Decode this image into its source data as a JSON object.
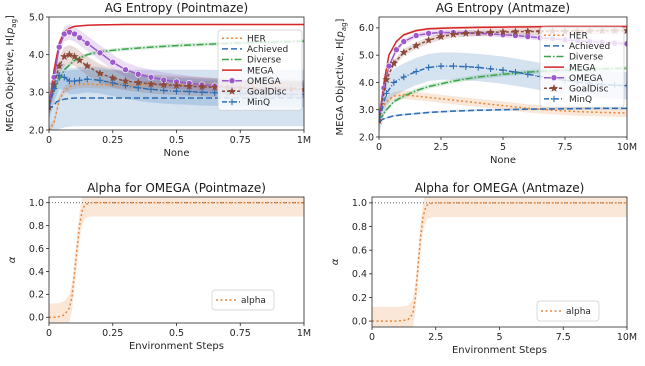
{
  "chart_data": [
    {
      "type": "line",
      "title": "AG Entropy (Pointmaze)",
      "xlabel": "None",
      "ylabel": "MEGA Objective, H[p_ag]",
      "xlim": [
        0,
        1
      ],
      "ylim": [
        2.0,
        5.0
      ],
      "xticks": [
        0,
        0.25,
        0.5,
        0.75,
        1.0
      ],
      "xtick_labels": [
        "0",
        "0.25",
        "0.5",
        "0.75",
        "1M"
      ],
      "yticks": [
        2.0,
        3.0,
        4.0,
        5.0
      ],
      "ytick_labels": [
        "2.0",
        "3.0",
        "4.0",
        "5.0"
      ],
      "legend_position": "right",
      "series": [
        {
          "name": "HER",
          "color": "#e8873a",
          "dash": "2,2.5",
          "marker": "",
          "x": [
            0,
            0.02,
            0.04,
            0.06,
            0.08,
            0.1,
            0.15,
            0.2,
            0.3,
            0.4,
            0.5,
            0.6,
            0.7,
            0.8,
            0.9,
            1.0
          ],
          "y": [
            2.0,
            2.2,
            2.8,
            3.05,
            3.15,
            3.2,
            3.22,
            3.2,
            3.2,
            3.2,
            3.2,
            3.2,
            3.2,
            3.2,
            3.2,
            3.2
          ],
          "band": 0.1
        },
        {
          "name": "Achieved",
          "color": "#2e6db4",
          "dash": "6,3",
          "marker": "",
          "x": [
            0,
            0.03,
            0.06,
            0.1,
            0.2,
            0.3,
            0.4,
            0.5,
            0.6,
            0.7,
            0.8,
            0.9,
            1.0
          ],
          "y": [
            2.5,
            2.75,
            2.82,
            2.85,
            2.85,
            2.85,
            2.85,
            2.85,
            2.85,
            2.85,
            2.85,
            2.85,
            2.85
          ],
          "band": 0.75
        },
        {
          "name": "Diverse",
          "color": "#3aa34a",
          "dash": "7,2,1.5,2",
          "marker": "",
          "x": [
            0,
            0.03,
            0.06,
            0.1,
            0.15,
            0.2,
            0.3,
            0.4,
            0.5,
            0.6,
            0.7,
            0.8,
            0.9,
            1.0
          ],
          "y": [
            2.7,
            3.2,
            3.6,
            3.85,
            4.0,
            4.08,
            4.15,
            4.2,
            4.24,
            4.27,
            4.3,
            4.32,
            4.34,
            4.36
          ],
          "band": 0.05
        },
        {
          "name": "MEGA",
          "color": "#d62728",
          "dash": "",
          "marker": "",
          "x": [
            0,
            0.02,
            0.04,
            0.06,
            0.08,
            0.1,
            0.15,
            0.2,
            0.3,
            0.4,
            0.5,
            0.6,
            0.7,
            0.8,
            0.9,
            1.0
          ],
          "y": [
            2.6,
            3.6,
            4.3,
            4.6,
            4.7,
            4.75,
            4.78,
            4.79,
            4.8,
            4.8,
            4.8,
            4.8,
            4.8,
            4.8,
            4.8,
            4.8
          ],
          "band": 0.02
        },
        {
          "name": "OMEGA",
          "color": "#9b59c9",
          "dash": "",
          "marker": "circle",
          "x": [
            0,
            0.02,
            0.04,
            0.06,
            0.08,
            0.1,
            0.12,
            0.15,
            0.2,
            0.25,
            0.3,
            0.35,
            0.4,
            0.45,
            0.5,
            0.55,
            0.6,
            0.65,
            0.7,
            0.75,
            0.8,
            0.85,
            0.9,
            0.95,
            1.0
          ],
          "y": [
            2.6,
            3.4,
            4.2,
            4.55,
            4.6,
            4.55,
            4.45,
            4.3,
            4.05,
            3.8,
            3.6,
            3.48,
            3.4,
            3.33,
            3.28,
            3.24,
            3.2,
            3.17,
            3.14,
            3.12,
            3.1,
            3.09,
            3.08,
            3.07,
            3.06
          ],
          "band": 0.2
        },
        {
          "name": "GoalDisc",
          "color": "#8c4a3a",
          "dash": "3,2",
          "marker": "star",
          "x": [
            0,
            0.02,
            0.04,
            0.06,
            0.08,
            0.1,
            0.12,
            0.15,
            0.2,
            0.25,
            0.3,
            0.35,
            0.4,
            0.45,
            0.5,
            0.55,
            0.6,
            0.65,
            0.7,
            0.75,
            0.8,
            0.85,
            0.9,
            0.95,
            1.0
          ],
          "y": [
            2.6,
            3.2,
            3.7,
            3.95,
            4.0,
            3.95,
            3.85,
            3.7,
            3.5,
            3.38,
            3.3,
            3.26,
            3.22,
            3.2,
            3.18,
            3.16,
            3.15,
            3.13,
            3.12,
            3.11,
            3.1,
            3.1,
            3.09,
            3.09,
            3.08
          ],
          "band": 0.25
        },
        {
          "name": "MinQ",
          "color": "#2e6db4",
          "dash": "5,2,1,2",
          "marker": "plus",
          "x": [
            0,
            0.02,
            0.04,
            0.06,
            0.08,
            0.1,
            0.12,
            0.15,
            0.2,
            0.25,
            0.3,
            0.35,
            0.4,
            0.45,
            0.5,
            0.55,
            0.6,
            0.65,
            0.7,
            0.75,
            0.8,
            0.85,
            0.9,
            0.95,
            1.0
          ],
          "y": [
            2.6,
            3.1,
            3.45,
            3.4,
            3.3,
            3.3,
            3.32,
            3.35,
            3.32,
            3.25,
            3.18,
            3.12,
            3.08,
            3.05,
            3.03,
            3.02,
            3.0,
            2.99,
            2.98,
            2.97,
            2.97,
            2.96,
            2.96,
            2.95,
            2.95
          ],
          "band": 0.35
        }
      ]
    },
    {
      "type": "line",
      "title": "AG Entropy (Antmaze)",
      "xlabel": "None",
      "ylabel": "MEGA Objective, H[p_ag]",
      "xlim": [
        0,
        10
      ],
      "ylim": [
        2.0,
        6.4
      ],
      "xticks": [
        0,
        2.5,
        5,
        7.5,
        10
      ],
      "xtick_labels": [
        "0",
        "2.5",
        "5",
        "7.5",
        "10M"
      ],
      "yticks": [
        2.0,
        3.0,
        4.0,
        5.0,
        6.0
      ],
      "ytick_labels": [
        "2.0",
        "3.0",
        "4.0",
        "5.0",
        "6.0"
      ],
      "legend_position": "right",
      "series": [
        {
          "name": "HER",
          "color": "#e8873a",
          "dash": "2,2.5",
          "marker": "",
          "x": [
            0,
            0.3,
            0.6,
            1,
            1.5,
            2,
            3,
            4,
            5,
            6,
            7,
            8,
            9,
            10
          ],
          "y": [
            2.9,
            3.3,
            3.5,
            3.55,
            3.5,
            3.45,
            3.35,
            3.25,
            3.15,
            3.05,
            2.98,
            2.93,
            2.9,
            2.88
          ],
          "band": 0.15
        },
        {
          "name": "Achieved",
          "color": "#2e6db4",
          "dash": "6,3",
          "marker": "",
          "x": [
            0,
            0.3,
            0.6,
            1,
            1.5,
            2,
            3,
            4,
            5,
            6,
            7,
            8,
            9,
            10
          ],
          "y": [
            2.6,
            2.7,
            2.78,
            2.82,
            2.86,
            2.9,
            2.95,
            2.98,
            3.0,
            3.02,
            3.03,
            3.04,
            3.05,
            3.05
          ],
          "band": 0.04
        },
        {
          "name": "Diverse",
          "color": "#3aa34a",
          "dash": "7,2,1.5,2",
          "marker": "",
          "x": [
            0,
            0.3,
            0.6,
            1,
            1.5,
            2,
            3,
            4,
            5,
            6,
            7,
            8,
            9,
            10
          ],
          "y": [
            2.6,
            3.0,
            3.3,
            3.5,
            3.7,
            3.85,
            4.05,
            4.2,
            4.3,
            4.38,
            4.43,
            4.47,
            4.5,
            4.52
          ],
          "band": 0.08
        },
        {
          "name": "MEGA",
          "color": "#d62728",
          "dash": "",
          "marker": "",
          "x": [
            0,
            0.2,
            0.4,
            0.7,
            1,
            1.5,
            2,
            3,
            4,
            5,
            6,
            7,
            8,
            9,
            10
          ],
          "y": [
            2.6,
            4.0,
            5.0,
            5.5,
            5.75,
            5.9,
            5.97,
            6.0,
            6.02,
            6.03,
            6.04,
            6.05,
            6.05,
            6.05,
            6.05
          ],
          "band": 0.05
        },
        {
          "name": "OMEGA",
          "color": "#9b59c9",
          "dash": "",
          "marker": "circle",
          "x": [
            0,
            0.2,
            0.4,
            0.7,
            1,
            1.5,
            2,
            2.5,
            3,
            3.5,
            4,
            4.5,
            5,
            5.5,
            6,
            6.5,
            7,
            7.5,
            8,
            8.5,
            9,
            9.5,
            10
          ],
          "y": [
            2.6,
            3.8,
            4.6,
            5.2,
            5.5,
            5.72,
            5.8,
            5.83,
            5.83,
            5.82,
            5.8,
            5.78,
            5.75,
            5.72,
            5.68,
            5.64,
            5.6,
            5.56,
            5.53,
            5.5,
            5.47,
            5.44,
            5.42
          ],
          "band": 0.1
        },
        {
          "name": "GoalDisc",
          "color": "#8c4a3a",
          "dash": "3,2",
          "marker": "star",
          "x": [
            0,
            0.3,
            0.6,
            1,
            1.5,
            2,
            2.5,
            3,
            3.5,
            4,
            4.5,
            5,
            5.5,
            6,
            6.5,
            7,
            7.5,
            8,
            8.5,
            9,
            9.5,
            10
          ],
          "y": [
            2.6,
            4.1,
            4.7,
            5.1,
            5.35,
            5.55,
            5.68,
            5.76,
            5.8,
            5.82,
            5.84,
            5.85,
            5.86,
            5.87,
            5.87,
            5.88,
            5.88,
            5.88,
            5.89,
            5.89,
            5.9,
            5.9
          ],
          "band": 0.12
        },
        {
          "name": "MinQ",
          "color": "#2e6db4",
          "dash": "5,2,1,2",
          "marker": "plus",
          "x": [
            0,
            0.3,
            0.6,
            1,
            1.5,
            2,
            2.5,
            3,
            3.5,
            4,
            4.5,
            5,
            5.5,
            6,
            6.5,
            7,
            7.5,
            8,
            8.5,
            9,
            9.5,
            10
          ],
          "y": [
            2.6,
            3.6,
            4.0,
            4.2,
            4.4,
            4.55,
            4.6,
            4.6,
            4.58,
            4.55,
            4.5,
            4.45,
            4.38,
            4.3,
            4.22,
            4.15,
            4.08,
            4.02,
            3.97,
            3.93,
            3.9,
            3.88
          ],
          "band": 0.5
        }
      ]
    },
    {
      "type": "line",
      "title": "Alpha for OMEGA (Pointmaze)",
      "xlabel": "Environment Steps",
      "ylabel": "α",
      "xlim": [
        0,
        1
      ],
      "ylim": [
        -0.05,
        1.05
      ],
      "xticks": [
        0,
        0.25,
        0.5,
        0.75,
        1.0
      ],
      "xtick_labels": [
        "0",
        "0.25",
        "0.5",
        "0.75",
        "1M"
      ],
      "yticks": [
        0.0,
        0.2,
        0.4,
        0.6,
        0.8,
        1.0
      ],
      "ytick_labels": [
        "0.0",
        "0.2",
        "0.4",
        "0.6",
        "0.8",
        "1.0"
      ],
      "hline": 1.0,
      "legend_position": "lower right",
      "series": [
        {
          "name": "alpha",
          "color": "#e8873a",
          "dash": "2,2.5",
          "marker": "",
          "x": [
            0,
            0.03,
            0.06,
            0.08,
            0.09,
            0.1,
            0.11,
            0.12,
            0.13,
            0.14,
            0.16,
            0.2,
            0.4,
            0.6,
            0.8,
            1.0
          ],
          "y": [
            0.0,
            0.0,
            0.02,
            0.08,
            0.18,
            0.38,
            0.6,
            0.8,
            0.93,
            0.98,
            1.0,
            1.0,
            1.0,
            1.0,
            1.0,
            1.0
          ],
          "band": 0.12
        }
      ]
    },
    {
      "type": "line",
      "title": "Alpha for OMEGA (Antmaze)",
      "xlabel": "Environment Steps",
      "ylabel": "α",
      "xlim": [
        0,
        10
      ],
      "ylim": [
        -0.05,
        1.05
      ],
      "xticks": [
        0,
        2.5,
        5,
        7.5,
        10
      ],
      "xtick_labels": [
        "0",
        "2.5",
        "5",
        "7.5",
        "10M"
      ],
      "yticks": [
        0.0,
        0.2,
        0.4,
        0.6,
        0.8,
        1.0
      ],
      "ytick_labels": [
        "0.0",
        "0.2",
        "0.4",
        "0.6",
        "0.8",
        "1.0"
      ],
      "hline": 1.0,
      "legend_position": "lower right",
      "series": [
        {
          "name": "alpha",
          "color": "#e8873a",
          "dash": "2,2.5",
          "marker": "",
          "x": [
            0,
            1,
            1.4,
            1.6,
            1.7,
            1.8,
            1.9,
            2.0,
            2.1,
            2.2,
            2.4,
            2.8,
            4,
            6,
            8,
            10
          ],
          "y": [
            0.0,
            0.0,
            0.01,
            0.06,
            0.2,
            0.45,
            0.7,
            0.88,
            0.96,
            0.99,
            1.0,
            1.0,
            1.0,
            1.0,
            1.0,
            1.0
          ],
          "band": 0.12
        }
      ]
    }
  ]
}
